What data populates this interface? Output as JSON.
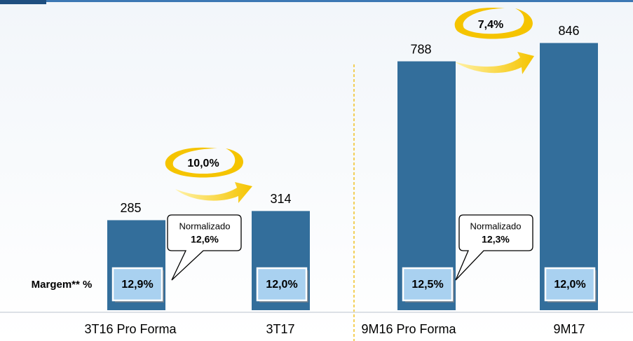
{
  "chart_data": {
    "type": "bar",
    "categories": [
      "3T16 Pro Forma",
      "3T17",
      "9M16 Pro Forma",
      "9M17"
    ],
    "values": [
      285,
      314,
      788,
      846
    ],
    "color": "#336e9b",
    "ylim": [
      0,
      960
    ],
    "margin_label": "Margem** %",
    "margins": [
      "12,9%",
      "12,0%",
      "12,5%",
      "12,0%"
    ],
    "growth": [
      "10,0%",
      "7,4%"
    ],
    "callouts": [
      {
        "title": "Normalizado",
        "value": "12,6%"
      },
      {
        "title": "Normalizado",
        "value": "12,3%"
      }
    ]
  }
}
